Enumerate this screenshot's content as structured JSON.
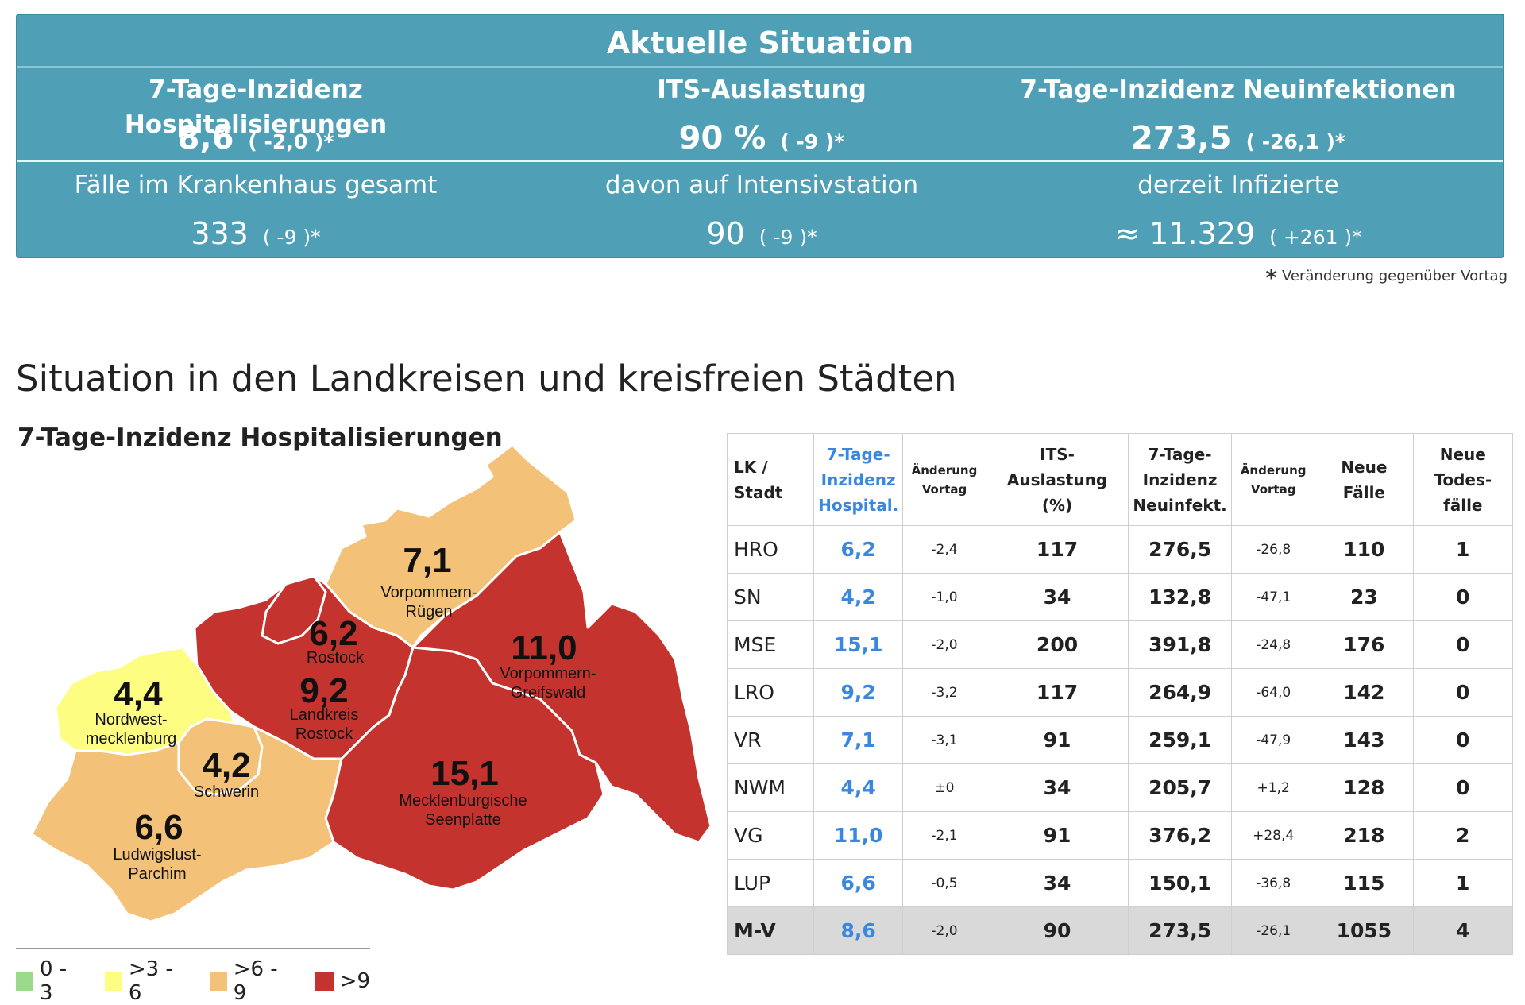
{
  "banner": {
    "title": "Aktuelle Situation",
    "kpis": [
      {
        "label": "7-Tage-Inzidenz Hospitalisierungen",
        "value": "8,6",
        "change": "( -2,0 )*"
      },
      {
        "label": "ITS-Auslastung",
        "value": "90 %",
        "change": "( -9 )*"
      },
      {
        "label": "7-Tage-Inzidenz Neuinfektionen",
        "value": "273,5",
        "change": "( -26,1 )*"
      }
    ],
    "subs": [
      {
        "label": "Fälle im Krankenhaus gesamt",
        "value": "333",
        "change": "( -9 )*"
      },
      {
        "label": "davon auf Intensivstation",
        "value": "90",
        "change": "( -9 )*"
      },
      {
        "label": "derzeit Infizierte",
        "value": "≈ 11.329",
        "change": "( +261 )*"
      }
    ],
    "footnote": "Veränderung gegenüber Vortag",
    "footnote_star": "*"
  },
  "section": {
    "title": "Situation in den Landkreisen und kreisfreien Städten"
  },
  "map": {
    "title": "7-Tage-Inzidenz Hospitalisierungen",
    "colors": {
      "green": "#9dd98b",
      "yellow": "#fdfd82",
      "orange": "#f3c278",
      "red": "#c5332e"
    },
    "regions": [
      {
        "value": "7,1",
        "name1": "Vorpommern-",
        "name2": "Rügen"
      },
      {
        "value": "6,2",
        "name1": "Rostock",
        "name2": ""
      },
      {
        "value": "9,2",
        "name1": "Landkreis",
        "name2": "Rostock"
      },
      {
        "value": "11,0",
        "name1": "Vorpommern-",
        "name2": "Greifswald"
      },
      {
        "value": "4,4",
        "name1": "Nordwest-",
        "name2": "mecklenburg"
      },
      {
        "value": "4,2",
        "name1": "Schwerin",
        "name2": ""
      },
      {
        "value": "15,1",
        "name1": "Mecklenburgische",
        "name2": "Seenplatte"
      },
      {
        "value": "6,6",
        "name1": "Ludwigslust-",
        "name2": "Parchim"
      }
    ],
    "legend": [
      {
        "label": "0 - 3",
        "color": "#9dd98b"
      },
      {
        "label": ">3 - 6",
        "color": "#fdfd82"
      },
      {
        "label": ">6 - 9",
        "color": "#f3c278"
      },
      {
        "label": ">9",
        "color": "#c5332e"
      }
    ]
  },
  "table": {
    "headers": {
      "lk1": "LK /",
      "lk2": "Stadt",
      "hosp1": "7-Tage-",
      "hosp2": "Inzidenz",
      "hosp3": "Hospital.",
      "chg1": "Änderung",
      "chg2": "Vortag",
      "its1": "ITS-",
      "its2": "Auslastung",
      "its3": "(%)",
      "inf1": "7-Tage-",
      "inf2": "Inzidenz",
      "inf3": "Neuinfekt.",
      "chg3": "Änderung",
      "chg4": "Vortag",
      "neue1": "Neue",
      "neue2": "Fälle",
      "tod1": "Neue",
      "tod2": "Todes-",
      "tod3": "fälle"
    },
    "rows": [
      {
        "lk": "HRO",
        "hosp": "6,2",
        "hosp_chg": "-2,4",
        "its": "117",
        "inf": "276,5",
        "inf_chg": "-26,8",
        "neue": "110",
        "tod": "1"
      },
      {
        "lk": "SN",
        "hosp": "4,2",
        "hosp_chg": "-1,0",
        "its": "34",
        "inf": "132,8",
        "inf_chg": "-47,1",
        "neue": "23",
        "tod": "0"
      },
      {
        "lk": "MSE",
        "hosp": "15,1",
        "hosp_chg": "-2,0",
        "its": "200",
        "inf": "391,8",
        "inf_chg": "-24,8",
        "neue": "176",
        "tod": "0"
      },
      {
        "lk": "LRO",
        "hosp": "9,2",
        "hosp_chg": "-3,2",
        "its": "117",
        "inf": "264,9",
        "inf_chg": "-64,0",
        "neue": "142",
        "tod": "0"
      },
      {
        "lk": "VR",
        "hosp": "7,1",
        "hosp_chg": "-3,1",
        "its": "91",
        "inf": "259,1",
        "inf_chg": "-47,9",
        "neue": "143",
        "tod": "0"
      },
      {
        "lk": "NWM",
        "hosp": "4,4",
        "hosp_chg": "±0",
        "its": "34",
        "inf": "205,7",
        "inf_chg": "+1,2",
        "neue": "128",
        "tod": "0"
      },
      {
        "lk": "VG",
        "hosp": "11,0",
        "hosp_chg": "-2,1",
        "its": "91",
        "inf": "376,2",
        "inf_chg": "+28,4",
        "neue": "218",
        "tod": "2"
      },
      {
        "lk": "LUP",
        "hosp": "6,6",
        "hosp_chg": "-0,5",
        "its": "34",
        "inf": "150,1",
        "inf_chg": "-36,8",
        "neue": "115",
        "tod": "1"
      }
    ],
    "total": {
      "lk": "M-V",
      "hosp": "8,6",
      "hosp_chg": "-2,0",
      "its": "90",
      "inf": "273,5",
      "inf_chg": "-26,1",
      "neue": "1055",
      "tod": "4"
    }
  }
}
